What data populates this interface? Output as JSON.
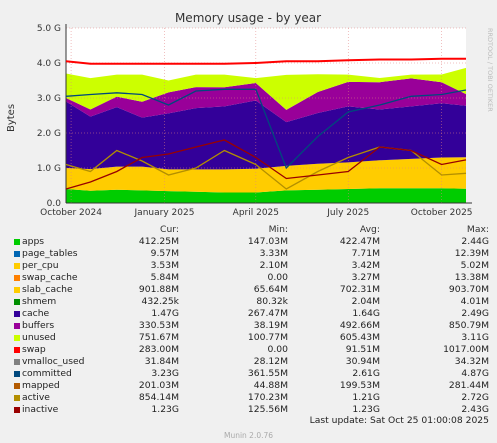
{
  "chart_data": {
    "type": "area",
    "title": "Memory usage - by year",
    "ylabel": "Bytes",
    "ylim": [
      0,
      5.0
    ],
    "yunit": "G",
    "yticks": [
      "0.0",
      "1.0 G",
      "2.0 G",
      "3.0 G",
      "4.0 G",
      "5.0 G"
    ],
    "ytick_values": [
      0,
      1,
      2,
      3,
      4,
      5
    ],
    "xticks": [
      "October 2024",
      "January 2025",
      "April 2025",
      "July 2025",
      "October 2025"
    ],
    "xrange": [
      "2024-09-26",
      "2025-10-25"
    ],
    "xtick_dates": [
      "2024-10-01",
      "2025-01-01",
      "2025-04-01",
      "2025-07-01",
      "2025-10-01"
    ],
    "grid": true,
    "side_label": "RRDTOOL / TOBI OETIKER",
    "legend_headers": [
      "Cur:",
      "Min:",
      "Avg:",
      "Max:"
    ],
    "series": [
      {
        "name": "apps",
        "color": "#00cc00",
        "cur": "412.25M",
        "min": "147.03M",
        "avg": "422.47M",
        "max": "2.44G"
      },
      {
        "name": "page_tables",
        "color": "#0066b3",
        "cur": "9.57M",
        "min": "3.33M",
        "avg": "7.71M",
        "max": "12.39M"
      },
      {
        "name": "per_cpu",
        "color": "#ffcc00",
        "cur": "3.53M",
        "min": "2.10M",
        "avg": "3.42M",
        "max": "5.02M"
      },
      {
        "name": "swap_cache",
        "color": "#ff8000",
        "cur": "5.84M",
        "min": "0.00",
        "avg": "3.27M",
        "max": "13.38M"
      },
      {
        "name": "slab_cache",
        "color": "#ffcc00",
        "cur": "901.88M",
        "min": "65.64M",
        "avg": "702.31M",
        "max": "903.70M"
      },
      {
        "name": "shmem",
        "color": "#008f00",
        "cur": "432.25k",
        "min": "80.32k",
        "avg": "2.04M",
        "max": "4.01M"
      },
      {
        "name": "cache",
        "color": "#330099",
        "cur": "1.47G",
        "min": "267.47M",
        "avg": "1.64G",
        "max": "2.49G"
      },
      {
        "name": "buffers",
        "color": "#990099",
        "cur": "330.53M",
        "min": "38.19M",
        "avg": "492.66M",
        "max": "850.79M"
      },
      {
        "name": "unused",
        "color": "#ccff00",
        "cur": "751.67M",
        "min": "100.77M",
        "avg": "605.43M",
        "max": "3.11G"
      },
      {
        "name": "swap",
        "color": "#ff0000",
        "cur": "283.00M",
        "min": "0.00",
        "avg": "91.51M",
        "max": "1017.00M"
      },
      {
        "name": "vmalloc_used",
        "color": "#808080",
        "cur": "31.84M",
        "min": "28.12M",
        "avg": "30.94M",
        "max": "34.32M"
      },
      {
        "name": "committed",
        "color": "#00487d",
        "cur": "3.23G",
        "min": "361.55M",
        "avg": "2.61G",
        "max": "4.87G"
      },
      {
        "name": "mapped",
        "color": "#b35a00",
        "cur": "201.03M",
        "min": "44.88M",
        "avg": "199.53M",
        "max": "281.44M"
      },
      {
        "name": "active",
        "color": "#b38f00",
        "cur": "854.14M",
        "min": "170.23M",
        "avg": "1.21G",
        "max": "2.72G"
      },
      {
        "name": "inactive",
        "color": "#990000",
        "cur": "1.23G",
        "min": "125.56M",
        "avg": "1.23G",
        "max": "2.43G"
      }
    ],
    "stack_series": {
      "x": [
        "2024-09-26",
        "2024-10-20",
        "2024-11-15",
        "2024-12-10",
        "2025-01-05",
        "2025-02-01",
        "2025-03-01",
        "2025-04-01",
        "2025-05-01",
        "2025-06-01",
        "2025-07-01",
        "2025-08-01",
        "2025-09-01",
        "2025-10-01",
        "2025-10-25"
      ],
      "apps": [
        0.4,
        0.35,
        0.38,
        0.36,
        0.34,
        0.32,
        0.3,
        0.3,
        0.36,
        0.38,
        0.4,
        0.42,
        0.42,
        0.42,
        0.41
      ],
      "slab_cache": [
        0.6,
        0.62,
        0.66,
        0.68,
        0.62,
        0.64,
        0.66,
        0.68,
        0.7,
        0.74,
        0.76,
        0.8,
        0.84,
        0.88,
        0.9
      ],
      "cache": [
        1.9,
        1.5,
        1.7,
        1.4,
        1.6,
        1.75,
        1.8,
        1.95,
        1.25,
        1.45,
        1.6,
        1.45,
        1.5,
        1.55,
        1.47
      ],
      "buffers": [
        0.1,
        0.2,
        0.3,
        0.45,
        0.6,
        0.6,
        0.55,
        0.5,
        0.35,
        0.6,
        0.7,
        0.78,
        0.8,
        0.6,
        0.33
      ],
      "unused": [
        0.7,
        0.9,
        0.63,
        0.78,
        0.34,
        0.36,
        0.36,
        0.14,
        1.0,
        0.51,
        0.21,
        0.12,
        0.11,
        0.22,
        0.75
      ]
    },
    "line_series": {
      "committed": [
        3.05,
        3.1,
        3.15,
        3.1,
        2.8,
        3.2,
        3.25,
        3.25,
        1.0,
        1.9,
        2.6,
        2.8,
        3.05,
        3.1,
        3.23
      ],
      "active": [
        1.1,
        0.9,
        1.5,
        1.2,
        0.8,
        1.0,
        1.5,
        1.1,
        0.4,
        0.9,
        1.3,
        1.6,
        1.5,
        0.8,
        0.85
      ],
      "inactive": [
        0.4,
        0.6,
        0.9,
        1.3,
        1.4,
        1.6,
        1.8,
        1.3,
        0.7,
        0.8,
        0.9,
        1.6,
        1.5,
        1.1,
        1.23
      ],
      "swap": [
        4.05,
        3.98,
        3.98,
        3.98,
        3.98,
        3.98,
        3.98,
        4.0,
        4.05,
        4.05,
        4.08,
        4.1,
        4.1,
        4.12,
        4.12
      ]
    }
  },
  "footer": {
    "last_update": "Last update: Sat Oct 25 01:00:08 2025",
    "version": "Munin 2.0.76"
  }
}
